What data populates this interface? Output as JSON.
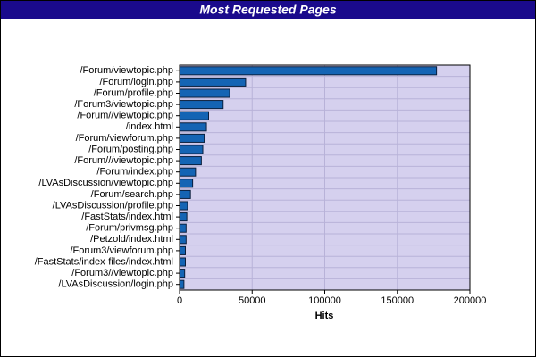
{
  "chart_data": {
    "type": "hbar",
    "title": "Most Requested Pages",
    "x_label": "Hits",
    "categories": [
      "/Forum/viewtopic.php",
      "/Forum/login.php",
      "/Forum/profile.php",
      "/Forum3/viewtopic.php",
      "/Forum//viewtopic.php",
      "/index.html",
      "/Forum/viewforum.php",
      "/Forum/posting.php",
      "/Forum///viewtopic.php",
      "/Forum/index.php",
      "/LVAsDiscussion/viewtopic.php",
      "/Forum/search.php",
      "/LVAsDiscussion/profile.php",
      "/FastStats/index.html",
      "/Forum/privmsg.php",
      "/Petzold/index.html",
      "/Forum3/viewforum.php",
      "/FastStats/index-files/index.html",
      "/Forum3//viewtopic.php",
      "/LVAsDiscussion/login.php"
    ],
    "values": [
      177000,
      45500,
      34500,
      30000,
      20000,
      18500,
      17000,
      16000,
      15000,
      11000,
      9000,
      7500,
      5500,
      5000,
      4500,
      4500,
      4000,
      4000,
      3500,
      3000
    ],
    "color": "#1464b4",
    "xlim": [
      0,
      200000
    ],
    "xticks": [
      0,
      50000,
      100000,
      150000,
      200000
    ],
    "grid": true
  }
}
